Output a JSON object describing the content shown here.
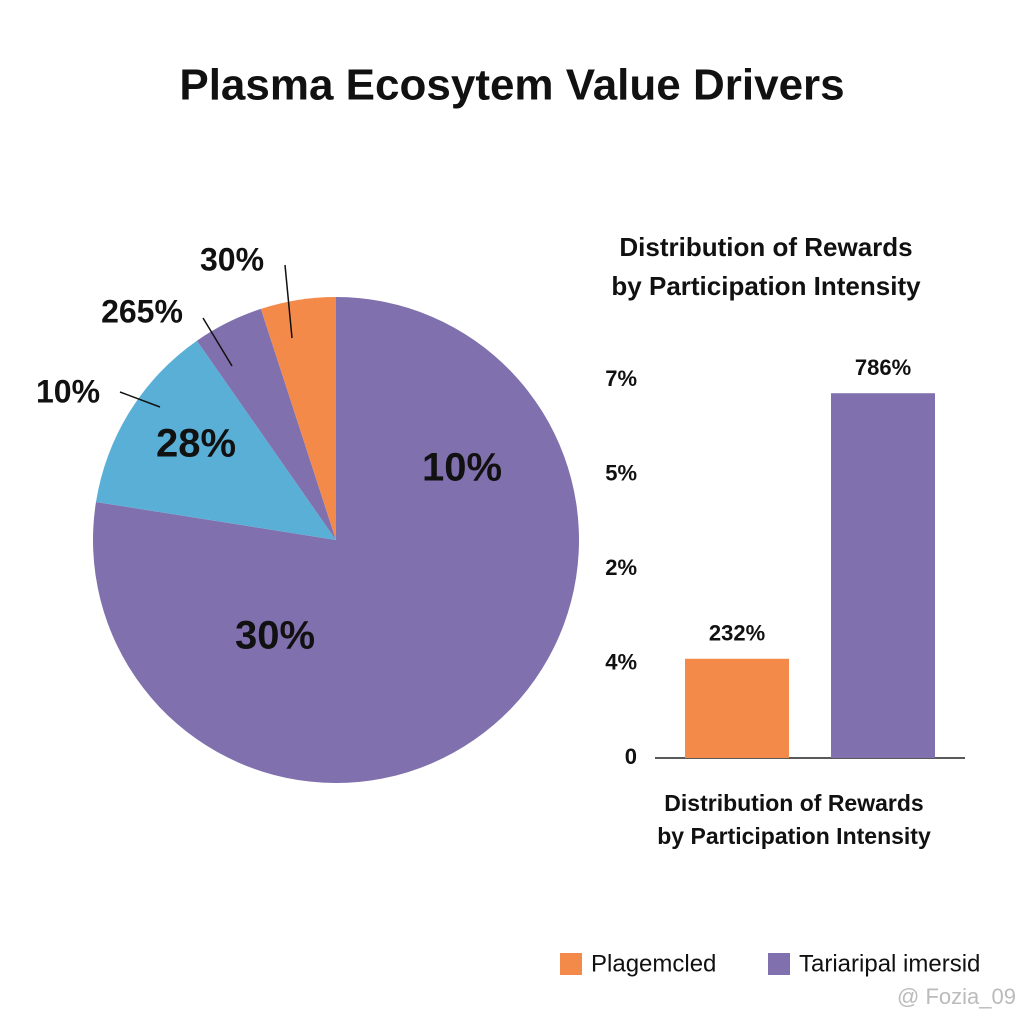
{
  "chart_data": [
    {
      "type": "pie",
      "title": "Plasma Ecosytem Value Drivers",
      "slices": [
        {
          "color": "#8070ad",
          "value": 77.5
        },
        {
          "color": "#5aafd6",
          "value": 12.8
        },
        {
          "color": "#8070ad",
          "value": 4.7
        },
        {
          "color": "#f48a4a",
          "value": 5
        }
      ],
      "annotations": [
        "30%",
        "265%",
        "10%",
        "28%",
        "10%",
        "30%"
      ]
    },
    {
      "type": "bar",
      "title": [
        "Distribution of Rewards",
        "by Participation Intensity"
      ],
      "x_label": [
        "Distribution of Rewards",
        "by Participation Intensity"
      ],
      "ylim": [
        0,
        4
      ],
      "yticks": [
        {
          "value": 0,
          "label": "0"
        },
        {
          "value": 1,
          "label": "4%"
        },
        {
          "value": 2,
          "label": "2%"
        },
        {
          "value": 3,
          "label": "5%"
        },
        {
          "value": 4,
          "label": "7%"
        }
      ],
      "series": [
        {
          "name": "Plagemcled",
          "color": "#f48a4a",
          "values": [
            1.05
          ]
        },
        {
          "name": "Tariaripal imersid",
          "color": "#8070ad",
          "values": [
            3.86
          ]
        }
      ],
      "bar_labels": [
        "232%",
        "786%"
      ],
      "legend": "bottom-right",
      "watermark": "@ Fozia_09"
    }
  ]
}
